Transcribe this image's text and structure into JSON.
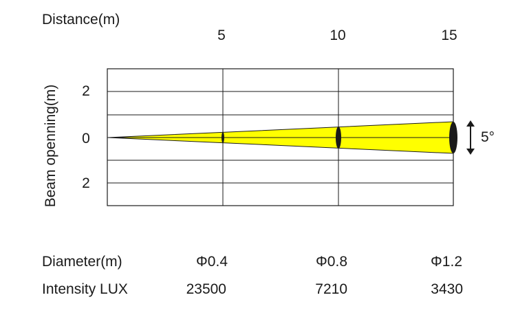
{
  "title": "Distance(m)",
  "y_label": "Beam openning(m)",
  "distance_ticks": [
    "5",
    "10",
    "15"
  ],
  "opening_ticks": [
    "2",
    "0",
    "2"
  ],
  "angle_label": "5°",
  "rows": [
    {
      "label": "Diameter(m)",
      "values": [
        "Φ0.4",
        "Φ0.8",
        "Φ1.2"
      ]
    },
    {
      "label": "Intensity LUX",
      "values": [
        "23500",
        "7210",
        "3430"
      ]
    }
  ],
  "chart_data": {
    "type": "diagram",
    "beam_angle_deg": 5,
    "distance_m": [
      5,
      10,
      15
    ],
    "diameter_m": [
      0.4,
      0.8,
      1.2
    ],
    "intensity_lux": [
      23500,
      7210,
      3430
    ],
    "y_ticks": [
      "2",
      "0",
      "2"
    ],
    "colors": {
      "beam": "#ffff00",
      "outline": "#1a1a1a"
    }
  }
}
